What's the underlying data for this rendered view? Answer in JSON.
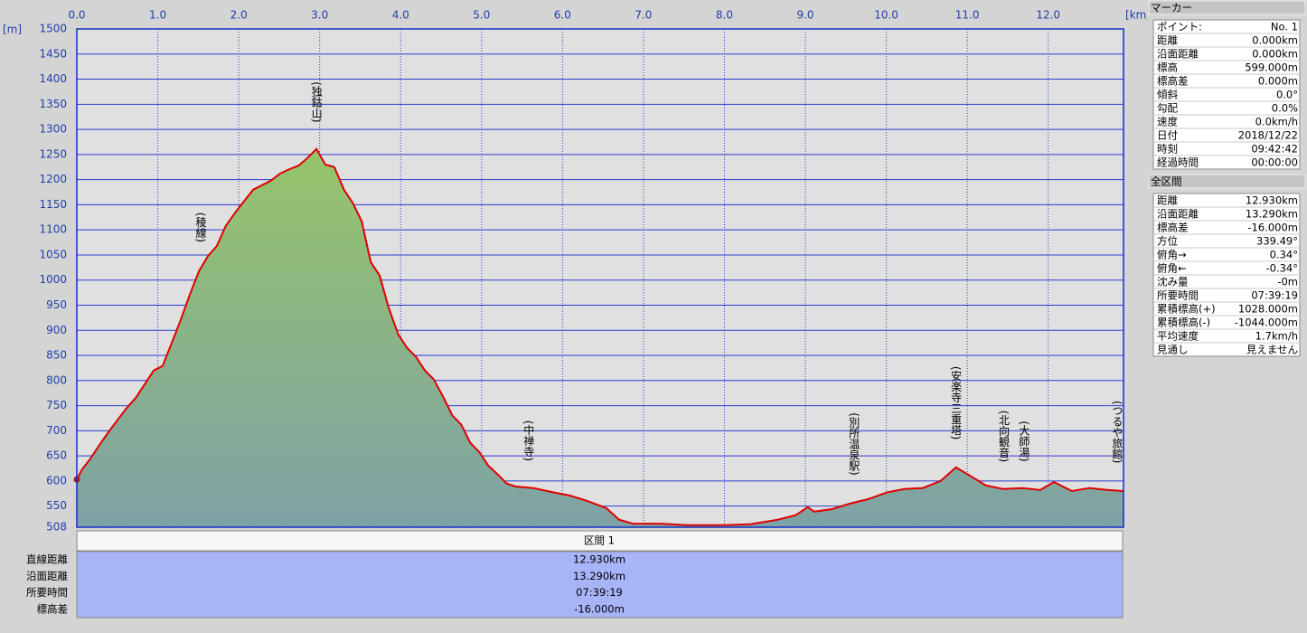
{
  "chart_data": {
    "type": "area",
    "x_unit_label": "[km]",
    "y_unit_label": "[m]",
    "color": "#e00000",
    "x": [
      0,
      0.06,
      0.17,
      0.28,
      0.39,
      0.5,
      0.61,
      0.73,
      0.84,
      0.95,
      1.06,
      1.17,
      1.28,
      1.4,
      1.51,
      1.62,
      1.73,
      1.84,
      1.96,
      2.07,
      2.18,
      2.29,
      2.4,
      2.51,
      2.63,
      2.74,
      2.85,
      2.96,
      3.07,
      3.18,
      3.3,
      3.41,
      3.52,
      3.63,
      3.74,
      3.85,
      3.97,
      4.08,
      4.19,
      4.3,
      4.41,
      4.53,
      4.64,
      4.75,
      4.86,
      4.97,
      5.08,
      5.2,
      5.31,
      5.42,
      5.64,
      5.87,
      6.09,
      6.31,
      6.54,
      6.7,
      6.87,
      7.21,
      7.54,
      7.99,
      8.32,
      8.66,
      8.88,
      9.03,
      9.11,
      9.33,
      9.55,
      9.78,
      10.0,
      10.22,
      10.45,
      10.67,
      10.86,
      11.01,
      11.23,
      11.45,
      11.68,
      11.9,
      12.07,
      12.29,
      12.51,
      12.74,
      12.93
    ],
    "values": [
      603,
      622,
      645,
      672,
      697,
      721,
      744,
      766,
      793,
      820,
      829,
      874,
      919,
      973,
      1018,
      1048,
      1068,
      1108,
      1135,
      1158,
      1180,
      1189,
      1198,
      1212,
      1221,
      1228,
      1243,
      1261,
      1230,
      1225,
      1180,
      1153,
      1117,
      1036,
      1009,
      946,
      892,
      865,
      847,
      820,
      802,
      766,
      730,
      712,
      676,
      658,
      631,
      613,
      595,
      589,
      586,
      578,
      571,
      560,
      546,
      523,
      515,
      515,
      512,
      512,
      514,
      523,
      532,
      548,
      539,
      544,
      555,
      564,
      577,
      584,
      586,
      600,
      627,
      613,
      591,
      584,
      586,
      582,
      598,
      580,
      586,
      582,
      580
    ],
    "xlim": [
      0,
      12.93
    ],
    "xticks": [
      {
        "value": 0,
        "label": "0.0"
      },
      {
        "value": 1,
        "label": "1.0"
      },
      {
        "value": 2,
        "label": "2.0"
      },
      {
        "value": 3,
        "label": "3.0"
      },
      {
        "value": 4,
        "label": "4.0"
      },
      {
        "value": 5,
        "label": "5.0"
      },
      {
        "value": 6,
        "label": "6.0"
      },
      {
        "value": 7,
        "label": "7.0"
      },
      {
        "value": 8,
        "label": "8.0"
      },
      {
        "value": 9,
        "label": "9.0"
      },
      {
        "value": 10,
        "label": "10.0"
      },
      {
        "value": 11,
        "label": "11.0"
      },
      {
        "value": 12,
        "label": "12.0"
      }
    ],
    "ylim": [
      508,
      1500
    ],
    "yticks": [
      508,
      550,
      600,
      650,
      700,
      750,
      800,
      850,
      900,
      950,
      1000,
      1050,
      1100,
      1150,
      1200,
      1250,
      1300,
      1350,
      1400,
      1450,
      1500
    ],
    "grid": true,
    "annotations": [
      {
        "text": "(稜線)",
        "x": 1.53
      },
      {
        "text": "(独鈷山)",
        "x": 2.96
      },
      {
        "text": "(中禅寺)",
        "x": 5.58
      },
      {
        "text": "(別所温泉駅)",
        "x": 9.6
      },
      {
        "text": "(安楽寺三重塔)",
        "x": 10.86
      },
      {
        "text": "(北向観音)",
        "x": 11.45
      },
      {
        "text": "(大師湯)",
        "x": 11.7
      },
      {
        "text": "(つるや旅館)",
        "x": 12.85
      }
    ]
  },
  "marker_panel": {
    "title": "マーカー",
    "rows": [
      [
        "ポイント:",
        "No. 1"
      ],
      [
        "距離",
        "0.000km"
      ],
      [
        "沿面距離",
        "0.000km"
      ],
      [
        "標高",
        "599.000m"
      ],
      [
        "標高差",
        "0.000m"
      ],
      [
        "傾斜",
        "0.0°"
      ],
      [
        "勾配",
        "0.0%"
      ],
      [
        "速度",
        "0.0km/h"
      ],
      [
        "日付",
        "2018/12/22"
      ],
      [
        "時刻",
        "09:42:42"
      ],
      [
        "経過時間",
        "00:00:00"
      ]
    ]
  },
  "section_panel": {
    "title": "全区間",
    "rows": [
      [
        "距離",
        "12.930km"
      ],
      [
        "沿面距離",
        "13.290km"
      ],
      [
        "標高差",
        "-16.000m"
      ],
      [
        "方位",
        "339.49°"
      ],
      [
        "俯角→",
        "0.34°"
      ],
      [
        "俯角←",
        "-0.34°"
      ],
      [
        "沈み量",
        "-0m"
      ],
      [
        "所要時間",
        "07:39:19"
      ],
      [
        "累積標高(+)",
        "1028.000m"
      ],
      [
        "累積標高(-)",
        "-1044.000m"
      ],
      [
        "平均速度",
        "1.7km/h"
      ],
      [
        "見通し",
        "見えません"
      ]
    ]
  },
  "summary_table": {
    "header": "区間 1",
    "rows": [
      [
        "直線距離",
        "12.930km"
      ],
      [
        "沿面距離",
        "13.290km"
      ],
      [
        "所要時間",
        "07:39:19"
      ],
      [
        "標高差",
        "-16.000m"
      ]
    ]
  }
}
